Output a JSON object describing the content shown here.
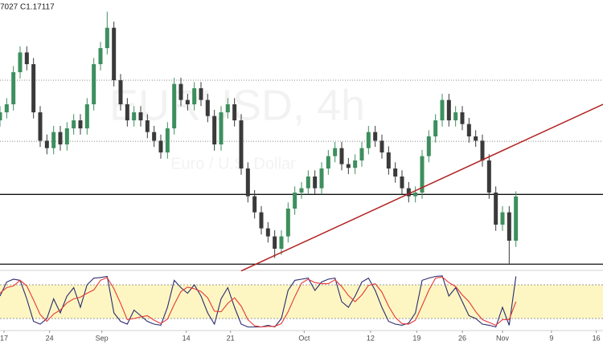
{
  "chart_data": {
    "type": "candlestick",
    "header_text": "7027  C1.17117",
    "watermark": "EURUSD, 4h",
    "watermark_subtitle": "Euro / U.S. Dollar",
    "x": [
      0,
      1,
      2,
      3,
      4,
      5,
      6,
      7,
      8,
      9,
      10,
      11,
      12,
      13,
      14,
      15,
      16,
      17,
      18,
      19,
      20,
      21,
      22,
      23,
      24,
      25,
      26,
      27,
      28,
      29,
      30,
      31,
      32,
      33,
      34,
      35,
      36,
      37,
      38,
      39,
      40,
      41,
      42,
      43,
      44,
      45,
      46,
      47,
      48,
      49,
      50,
      51,
      52,
      53,
      54,
      55,
      56,
      57,
      58,
      59,
      60,
      61,
      62,
      63,
      64,
      65,
      66,
      67,
      68,
      69,
      70,
      71,
      72,
      73,
      74,
      75,
      76,
      77
    ],
    "open": [
      1.1835,
      1.1848,
      1.1861,
      1.1913,
      1.1945,
      1.1926,
      1.1848,
      1.1802,
      1.179,
      1.1816,
      1.1796,
      1.1822,
      1.1835,
      1.1822,
      1.1861,
      1.1926,
      1.1952,
      1.1985,
      1.19,
      1.1861,
      1.1835,
      1.1848,
      1.1835,
      1.1816,
      1.1802,
      1.1783,
      1.1822,
      1.1894,
      1.1868,
      1.1861,
      1.1887,
      1.1868,
      1.1842,
      1.1796,
      1.1848,
      1.1861,
      1.1835,
      1.1757,
      1.1712,
      1.1686,
      1.166,
      1.1647,
      1.1627,
      1.1647,
      1.1692,
      1.1718,
      1.1725,
      1.1744,
      1.1725,
      1.1757,
      1.1777,
      1.179,
      1.1764,
      1.1758,
      1.177,
      1.179,
      1.1816,
      1.1802,
      1.1783,
      1.1757,
      1.1744,
      1.1725,
      1.1712,
      1.1718,
      1.1777,
      1.1809,
      1.1835,
      1.1868,
      1.1835,
      1.1848,
      1.1829,
      1.1809,
      1.1802,
      1.177,
      1.1718,
      1.1666,
      1.1686,
      1.164
    ],
    "high": [
      1.1858,
      1.1871,
      1.1923,
      1.1955,
      1.1955,
      1.1936,
      1.1858,
      1.1812,
      1.1826,
      1.1826,
      1.1832,
      1.1845,
      1.1845,
      1.1871,
      1.1936,
      1.1962,
      1.2011,
      1.1995,
      1.191,
      1.1871,
      1.1858,
      1.1858,
      1.1845,
      1.1826,
      1.1812,
      1.1832,
      1.1904,
      1.1904,
      1.1878,
      1.1897,
      1.1897,
      1.1878,
      1.1852,
      1.1858,
      1.1871,
      1.1871,
      1.1845,
      1.1767,
      1.1722,
      1.1696,
      1.167,
      1.1657,
      1.1657,
      1.1702,
      1.1728,
      1.1735,
      1.1754,
      1.1754,
      1.1767,
      1.1787,
      1.18,
      1.18,
      1.1774,
      1.178,
      1.18,
      1.1826,
      1.1826,
      1.1812,
      1.1793,
      1.1767,
      1.1754,
      1.1735,
      1.1728,
      1.1787,
      1.1819,
      1.1845,
      1.1878,
      1.1878,
      1.1858,
      1.1858,
      1.1839,
      1.1819,
      1.1812,
      1.178,
      1.1728,
      1.1696,
      1.1696,
      1.172
    ],
    "low": [
      1.1825,
      1.1838,
      1.1851,
      1.1903,
      1.1916,
      1.1838,
      1.1792,
      1.178,
      1.178,
      1.1786,
      1.1786,
      1.1812,
      1.1812,
      1.1812,
      1.1851,
      1.1916,
      1.1942,
      1.189,
      1.1851,
      1.1825,
      1.1825,
      1.1825,
      1.1806,
      1.1792,
      1.1773,
      1.1773,
      1.1812,
      1.1858,
      1.1851,
      1.1851,
      1.1858,
      1.1832,
      1.1786,
      1.1786,
      1.1838,
      1.1825,
      1.1747,
      1.1702,
      1.1676,
      1.165,
      1.1637,
      1.1612,
      1.1617,
      1.1637,
      1.1682,
      1.1708,
      1.1715,
      1.1715,
      1.1715,
      1.1747,
      1.1767,
      1.1754,
      1.1748,
      1.1748,
      1.176,
      1.178,
      1.1792,
      1.1773,
      1.1747,
      1.1734,
      1.1715,
      1.1702,
      1.1702,
      1.1708,
      1.1767,
      1.1799,
      1.1825,
      1.1825,
      1.1825,
      1.1819,
      1.1799,
      1.1792,
      1.176,
      1.1708,
      1.1656,
      1.1656,
      1.1603,
      1.163
    ],
    "close": [
      1.1848,
      1.1861,
      1.1913,
      1.1945,
      1.1926,
      1.1848,
      1.1802,
      1.179,
      1.1816,
      1.1796,
      1.1822,
      1.1835,
      1.1822,
      1.1861,
      1.1926,
      1.1952,
      1.1985,
      1.19,
      1.1861,
      1.1835,
      1.1848,
      1.1835,
      1.1816,
      1.1802,
      1.1783,
      1.1822,
      1.1894,
      1.1868,
      1.1861,
      1.1887,
      1.1868,
      1.1842,
      1.1796,
      1.1848,
      1.1861,
      1.1835,
      1.1757,
      1.1712,
      1.1686,
      1.166,
      1.1647,
      1.1627,
      1.1647,
      1.1692,
      1.1718,
      1.1725,
      1.1744,
      1.1725,
      1.1757,
      1.1777,
      1.179,
      1.1764,
      1.1758,
      1.177,
      1.179,
      1.1816,
      1.1802,
      1.1783,
      1.1757,
      1.1744,
      1.1725,
      1.1712,
      1.1718,
      1.1777,
      1.1809,
      1.1835,
      1.1868,
      1.1835,
      1.1848,
      1.1829,
      1.1809,
      1.1802,
      1.177,
      1.1718,
      1.1666,
      1.1686,
      1.164,
      1.17117
    ],
    "up_color": "#3d8f5e",
    "down_color": "#3a3a3a",
    "xlim": [
      0,
      90
    ],
    "xticks": [
      {
        "value": 0.6,
        "label": "17"
      },
      {
        "value": 7.4,
        "label": "24"
      },
      {
        "value": 15.2,
        "label": "Sep"
      },
      {
        "value": 27.8,
        "label": "14"
      },
      {
        "value": 34.4,
        "label": "21"
      },
      {
        "value": 45.4,
        "label": "Oct"
      },
      {
        "value": 55.3,
        "label": "12"
      },
      {
        "value": 62.2,
        "label": "19"
      },
      {
        "value": 69,
        "label": "26"
      },
      {
        "value": 75,
        "label": "Nov"
      },
      {
        "value": 82.3,
        "label": "9"
      },
      {
        "value": 89,
        "label": "16"
      }
    ],
    "ylim": [
      1.1601,
      1.203
    ],
    "levels": [
      {
        "value": 1.19,
        "style": "dotted"
      },
      {
        "value": 1.1801,
        "style": "dotted"
      },
      {
        "value": 1.1715,
        "style": "solid"
      },
      {
        "value": 1.1602,
        "style": "solid"
      }
    ],
    "trendline": {
      "x": [
        36,
        90
      ],
      "y": [
        1.1591,
        1.1861
      ],
      "color": "#b22222"
    },
    "oscillator": {
      "ylim": [
        0,
        100
      ],
      "band": [
        20,
        80
      ],
      "band_color": "#fdf6c3",
      "series": [
        {
          "color": "#2a2a6e",
          "values": [
            60,
            85,
            90,
            88,
            55,
            15,
            10,
            20,
            55,
            30,
            60,
            75,
            40,
            80,
            92,
            93,
            95,
            30,
            15,
            10,
            35,
            25,
            15,
            10,
            8,
            40,
            88,
            75,
            65,
            80,
            60,
            30,
            10,
            55,
            75,
            40,
            10,
            5,
            5,
            5,
            8,
            5,
            20,
            70,
            88,
            90,
            92,
            70,
            85,
            90,
            92,
            50,
            40,
            60,
            85,
            92,
            70,
            40,
            15,
            10,
            8,
            12,
            30,
            88,
            92,
            95,
            96,
            60,
            75,
            50,
            25,
            20,
            10,
            8,
            5,
            40,
            8,
            95
          ]
        },
        {
          "color": "#e53935",
          "values": [
            65,
            75,
            78,
            88,
            78,
            53,
            27,
            15,
            28,
            35,
            48,
            55,
            58,
            65,
            71,
            88,
            93,
            73,
            47,
            18,
            20,
            23,
            25,
            17,
            11,
            19,
            45,
            68,
            76,
            73,
            68,
            57,
            33,
            32,
            47,
            57,
            42,
            18,
            7,
            5,
            6,
            6,
            11,
            32,
            59,
            83,
            90,
            84,
            82,
            82,
            89,
            77,
            61,
            50,
            62,
            79,
            82,
            67,
            42,
            22,
            11,
            10,
            17,
            43,
            70,
            92,
            94,
            84,
            77,
            62,
            50,
            32,
            18,
            13,
            8,
            18,
            18,
            50
          ]
        }
      ]
    }
  }
}
